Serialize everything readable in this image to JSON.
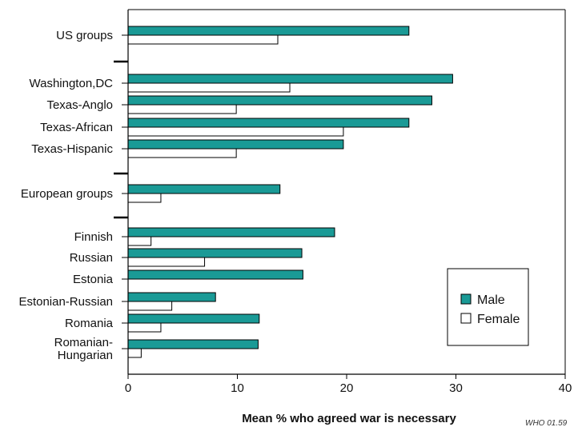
{
  "chart_data": {
    "type": "bar",
    "orientation": "horizontal",
    "categories": [
      [
        "US groups"
      ],
      [
        "Washington,DC"
      ],
      [
        "Texas-Anglo"
      ],
      [
        "Texas-African"
      ],
      [
        "Texas-Hispanic"
      ],
      [
        "European groups"
      ],
      [
        "Finnish"
      ],
      [
        "Russian"
      ],
      [
        "Estonia"
      ],
      [
        "Estonian-Russian"
      ],
      [
        "Romania"
      ],
      [
        "Romanian-",
        "Hungarian"
      ]
    ],
    "group_separators_after": [
      0,
      4,
      5
    ],
    "series": [
      {
        "name": "Male",
        "color": "#1a9a96",
        "values": [
          25.7,
          29.7,
          27.8,
          25.7,
          19.7,
          13.9,
          18.9,
          15.9,
          16.0,
          8.0,
          12.0,
          11.9
        ]
      },
      {
        "name": "Female",
        "color": "#ffffff",
        "values": [
          13.7,
          14.8,
          9.9,
          19.7,
          9.9,
          3.0,
          2.1,
          7.0,
          0.0,
          4.0,
          3.0,
          1.2
        ]
      }
    ],
    "xlabel": "Mean % who agreed war is necessary",
    "xlim": [
      0,
      40
    ],
    "xticks": [
      0,
      10,
      20,
      30,
      40
    ],
    "legend": {
      "placement": "bottom-right"
    },
    "grid": false,
    "credit": "WHO 01.59"
  }
}
